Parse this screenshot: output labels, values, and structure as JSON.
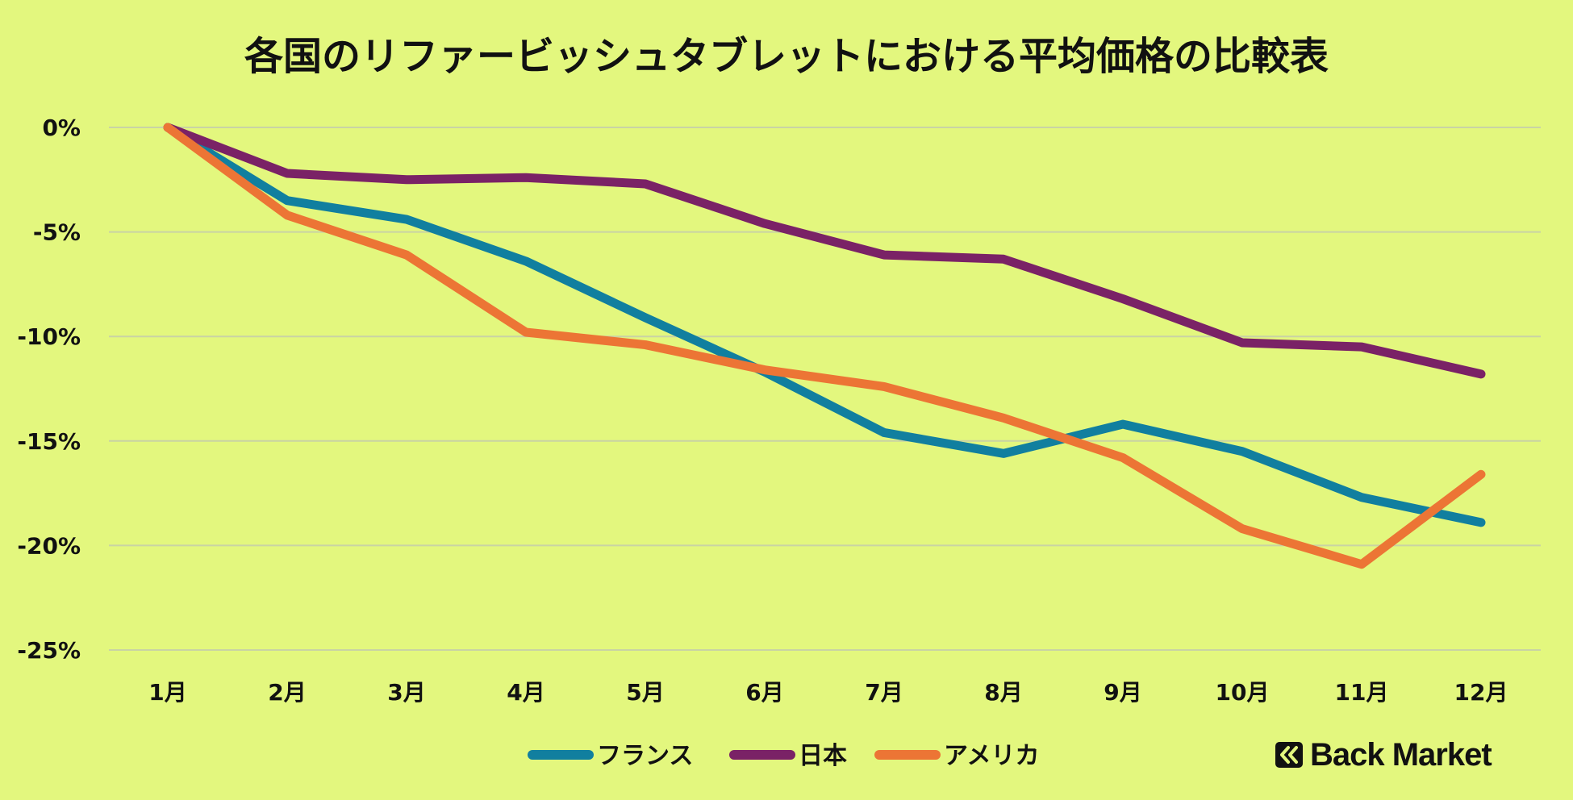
{
  "chart_data": {
    "type": "line",
    "title": "各国のリファービッシュタブレットにおける平均価格の比較表",
    "categories": [
      "1月",
      "2月",
      "3月",
      "4月",
      "5月",
      "6月",
      "7月",
      "8月",
      "9月",
      "10月",
      "11月",
      "12月"
    ],
    "ylim": [
      -25,
      0
    ],
    "yticks": [
      0,
      -5,
      -10,
      -15,
      -20,
      -25
    ],
    "ytick_labels": [
      "0%",
      "-5%",
      "-10%",
      "-15%",
      "-20%",
      "-25%"
    ],
    "grid": true,
    "legend_position": "bottom",
    "series": [
      {
        "name": "フランス",
        "color": "#117f9f",
        "values": [
          0,
          -3.5,
          -4.4,
          -6.4,
          -9.1,
          -11.7,
          -14.6,
          -15.6,
          -14.2,
          -15.5,
          -17.7,
          -18.9
        ]
      },
      {
        "name": "日本",
        "color": "#7a2266",
        "values": [
          0,
          -2.2,
          -2.5,
          -2.4,
          -2.7,
          -4.6,
          -6.1,
          -6.3,
          -8.2,
          -10.3,
          -10.5,
          -11.8
        ]
      },
      {
        "name": "アメリカ",
        "color": "#ec7535",
        "values": [
          0,
          -4.2,
          -6.1,
          -9.8,
          -10.4,
          -11.6,
          -12.4,
          -13.9,
          -15.8,
          -19.2,
          -20.9,
          -16.6
        ]
      }
    ]
  },
  "brand": {
    "name": "Back Market",
    "icon": "back-market-logo-icon"
  }
}
